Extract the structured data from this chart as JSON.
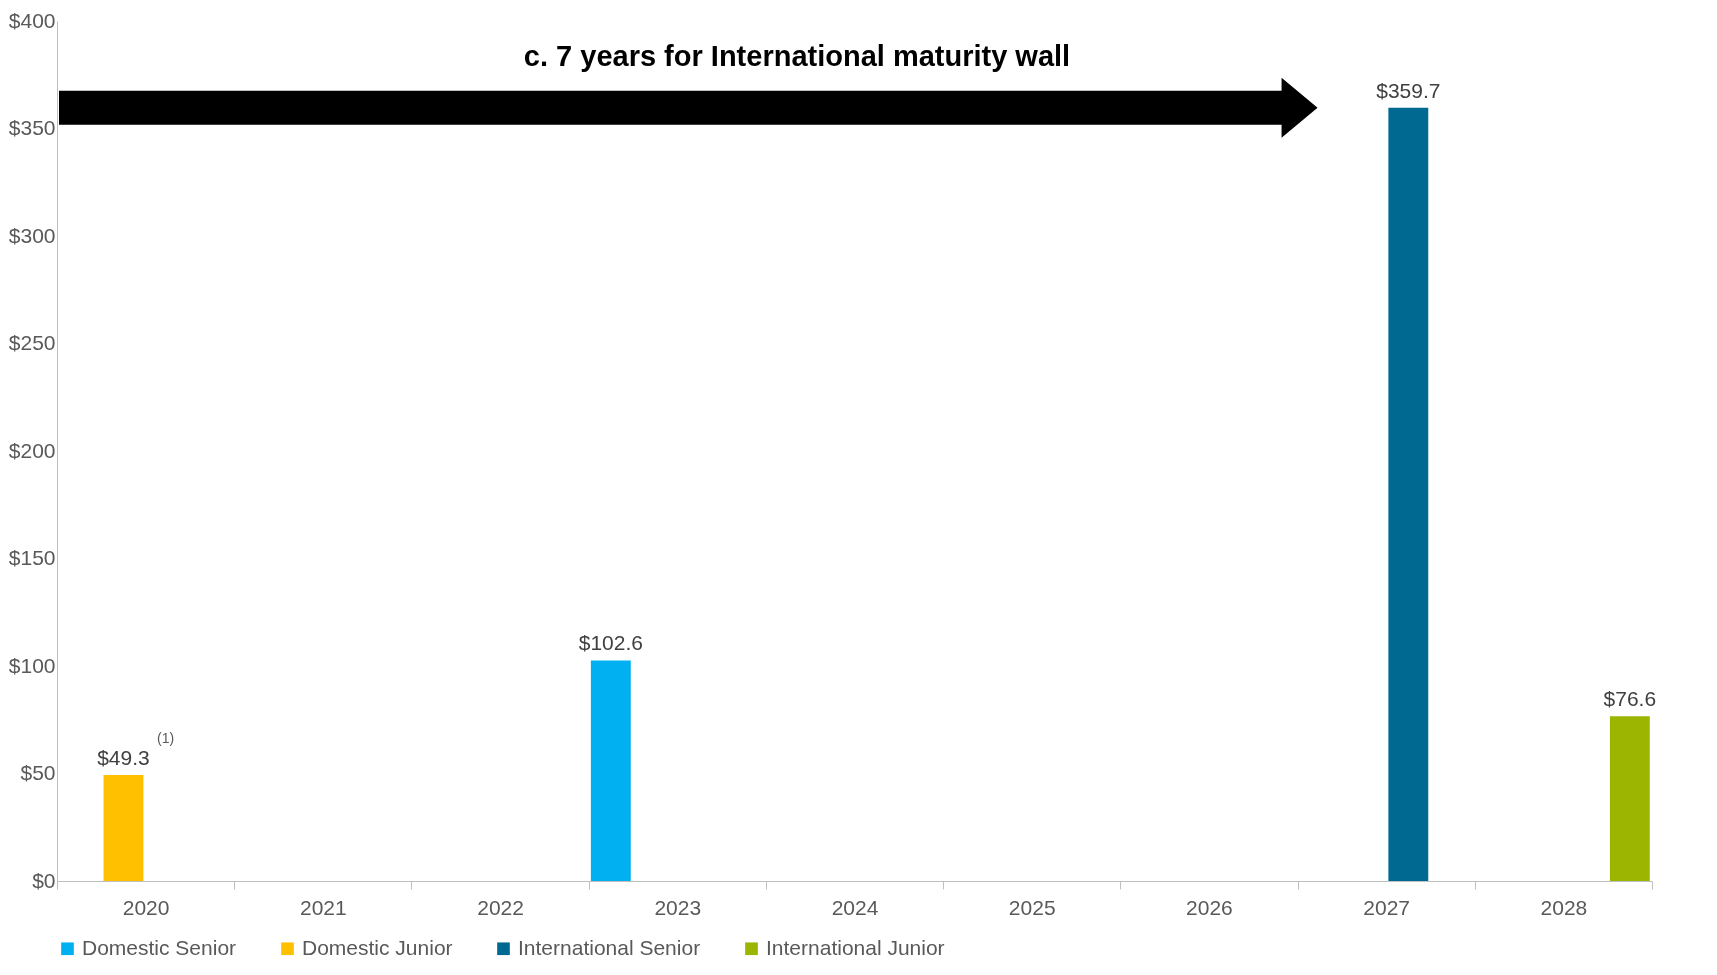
{
  "chart_data": {
    "type": "bar",
    "categories": [
      "2020",
      "2021",
      "2022",
      "2023",
      "2024",
      "2025",
      "2026",
      "2027",
      "2028"
    ],
    "series": [
      {
        "name": "Domestic Senior",
        "color": "#00b0f0",
        "values": [
          null,
          null,
          null,
          102.6,
          null,
          null,
          null,
          null,
          null
        ],
        "value_labels": [
          null,
          null,
          null,
          "$102.6",
          null,
          null,
          null,
          null,
          null
        ]
      },
      {
        "name": "Domestic Junior",
        "color": "#ffc000",
        "values": [
          49.3,
          null,
          null,
          null,
          null,
          null,
          null,
          null,
          null
        ],
        "value_labels": [
          "$49.3",
          null,
          null,
          null,
          null,
          null,
          null,
          null,
          null
        ]
      },
      {
        "name": "International Senior",
        "color": "#006991",
        "values": [
          null,
          null,
          null,
          null,
          null,
          null,
          null,
          359.7,
          null
        ],
        "value_labels": [
          null,
          null,
          null,
          null,
          null,
          null,
          null,
          "$359.7",
          null
        ]
      },
      {
        "name": "International Junior",
        "color": "#9bb500",
        "values": [
          null,
          null,
          null,
          null,
          null,
          null,
          null,
          null,
          76.6
        ],
        "value_labels": [
          null,
          null,
          null,
          null,
          null,
          null,
          null,
          null,
          "$76.6"
        ]
      }
    ],
    "ylim": [
      0,
      400
    ],
    "yticks": [
      {
        "value": 0,
        "label": "$0"
      },
      {
        "value": 50,
        "label": "$50"
      },
      {
        "value": 100,
        "label": "$100"
      },
      {
        "value": 150,
        "label": "$150"
      },
      {
        "value": 200,
        "label": "$200"
      },
      {
        "value": 250,
        "label": "$250"
      },
      {
        "value": 300,
        "label": "$300"
      },
      {
        "value": 350,
        "label": "$350"
      },
      {
        "value": 400,
        "label": "$400"
      }
    ],
    "grid": false,
    "legend": "bottom",
    "annotations": [
      "c. 7 years for International maturity wall",
      {
        "text": "(1)",
        "x": "2020",
        "y": 49.3
      }
    ]
  }
}
